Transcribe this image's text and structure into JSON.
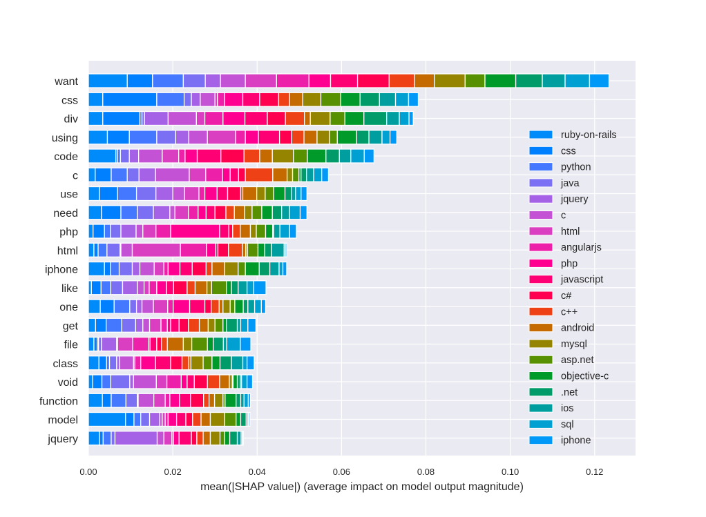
{
  "chart_data": {
    "type": "bar",
    "orientation": "horizontal",
    "stacked": true,
    "title": "",
    "xlabel": "mean(|SHAP value|) (average impact on model output magnitude)",
    "ylabel": "",
    "xlim": [
      0,
      0.1297
    ],
    "xticks": [
      "0.00",
      "0.02",
      "0.04",
      "0.06",
      "0.08",
      "0.10",
      "0.12"
    ],
    "grid": true,
    "legend_position": "right",
    "categories": [
      "want",
      "css",
      "div",
      "using",
      "code",
      "c",
      "use",
      "need",
      "php",
      "html",
      "iphone",
      "like",
      "one",
      "get",
      "file",
      "class",
      "void",
      "function",
      "model",
      "jquery"
    ],
    "series": [
      {
        "name": "ruby-on-rails",
        "color": "#008bfb",
        "values": [
          0.0092,
          0.0034,
          0.0034,
          0.0045,
          0.0065,
          0.0016,
          0.0026,
          0.0031,
          0.0011,
          0.0013,
          0.0038,
          0.0007,
          0.0028,
          0.0017,
          0.0013,
          0.0025,
          0.001,
          0.0033,
          0.0088,
          0.0026
        ]
      },
      {
        "name": "css",
        "color": "#0080ff",
        "values": [
          0.006,
          0.0128,
          0.0088,
          0.0052,
          0.0004,
          0.0038,
          0.0043,
          0.0046,
          0.0027,
          0.001,
          0.0014,
          0.0023,
          0.0033,
          0.0025,
          0.0008,
          0.0018,
          0.0022,
          0.0021,
          0.002,
          0.0009
        ]
      },
      {
        "name": "python",
        "color": "#4479ff",
        "values": [
          0.0073,
          0.0065,
          0.0005,
          0.0065,
          0.0007,
          0.0038,
          0.0045,
          0.0039,
          0.0014,
          0.0021,
          0.0021,
          0.0023,
          0.0037,
          0.0037,
          0.0003,
          0.0007,
          0.0021,
          0.0035,
          0.0016,
          0.0019
        ]
      },
      {
        "name": "java",
        "color": "#7b70f4",
        "values": [
          0.0052,
          0.0017,
          0.0006,
          0.0045,
          0.0021,
          0.0028,
          0.0046,
          0.0038,
          0.0025,
          0.0031,
          0.0031,
          0.0028,
          0.0016,
          0.0033,
          0.0007,
          0.0017,
          0.0045,
          0.0027,
          0.0021,
          0.0009
        ]
      },
      {
        "name": "jquery",
        "color": "#a562e6",
        "values": [
          0.0036,
          0.0021,
          0.0056,
          0.0031,
          0.0022,
          0.0039,
          0.004,
          0.0039,
          0.0036,
          0.0002,
          0.0018,
          0.0035,
          0.0013,
          0.0017,
          0.0036,
          0.0007,
          0.0009,
          0.0002,
          0.0024,
          0.01
        ]
      },
      {
        "name": "c",
        "color": "#c452d4",
        "values": [
          0.0059,
          0.0035,
          0.0067,
          0.0044,
          0.0056,
          0.008,
          0.0028,
          0.0012,
          0.0016,
          0.0027,
          0.0034,
          0.0016,
          0.0027,
          0.0016,
          0.0002,
          0.0033,
          0.0054,
          0.0037,
          0.0006,
          0.0016
        ]
      },
      {
        "name": "html",
        "color": "#d93fc0",
        "values": [
          0.0074,
          0.0006,
          0.002,
          0.0067,
          0.0039,
          0.0039,
          0.0034,
          0.0032,
          0.0031,
          0.0114,
          0.0023,
          0.0012,
          0.0034,
          0.0027,
          0.0036,
          0.0003,
          0.0025,
          0.0027,
          0.0007,
          0.0019
        ]
      },
      {
        "name": "angularjs",
        "color": "#ed21a9",
        "values": [
          0.0077,
          0.0017,
          0.0043,
          0.0023,
          0.0015,
          0.004,
          0.0014,
          0.0023,
          0.0035,
          0.0062,
          0.001,
          0.0018,
          0.0013,
          0.0015,
          0.0037,
          0.0014,
          0.0034,
          0.0011,
          0.0007,
          0.0004
        ]
      },
      {
        "name": "php",
        "color": "#ff0090",
        "values": [
          0.0051,
          0.0043,
          0.0052,
          0.0031,
          0.0029,
          0.0018,
          0.0029,
          0.0019,
          0.0116,
          0.0022,
          0.0028,
          0.0023,
          0.0039,
          0.0008,
          0.0004,
          0.0035,
          0.0014,
          0.0023,
          0.002,
          0.0013
        ]
      },
      {
        "name": "javascript",
        "color": "#ff0074",
        "values": [
          0.0064,
          0.004,
          0.0053,
          0.005,
          0.0056,
          0.002,
          0.0025,
          0.0021,
          0.0022,
          0.0005,
          0.0029,
          0.0017,
          0.0036,
          0.002,
          0.0016,
          0.0036,
          0.0017,
          0.0026,
          0.0022,
          0.0029
        ]
      },
      {
        "name": "c#",
        "color": "#ff0051",
        "values": [
          0.0075,
          0.0045,
          0.0043,
          0.0029,
          0.0055,
          0.0016,
          0.0031,
          0.0026,
          0.0009,
          0.0025,
          0.0033,
          0.0032,
          0.0015,
          0.0022,
          0.0011,
          0.0027,
          0.0031,
          0.0031,
          0.0016,
          0.0013
        ]
      },
      {
        "name": "c++",
        "color": "#ef4116",
        "values": [
          0.006,
          0.0026,
          0.0045,
          0.0029,
          0.0037,
          0.0065,
          0.0005,
          0.002,
          0.0018,
          0.0033,
          0.0014,
          0.0019,
          0.0019,
          0.0026,
          0.0014,
          0.0016,
          0.0029,
          0.0013,
          0.002,
          0.0015
        ]
      },
      {
        "name": "android",
        "color": "#c46a00",
        "values": [
          0.0047,
          0.0031,
          0.0014,
          0.0031,
          0.003,
          0.0034,
          0.0033,
          0.0024,
          0.0024,
          0.0008,
          0.003,
          0.0028,
          0.0009,
          0.0021,
          0.0038,
          0.0005,
          0.0023,
          0.0013,
          0.0022,
          0.0017
        ]
      },
      {
        "name": "mysql",
        "color": "#948400",
        "values": [
          0.0073,
          0.0043,
          0.0047,
          0.003,
          0.005,
          0.0013,
          0.002,
          0.0018,
          0.0014,
          0.0004,
          0.0032,
          0.0011,
          0.0017,
          0.0016,
          0.002,
          0.0029,
          0.0007,
          0.002,
          0.0034,
          0.0023
        ]
      },
      {
        "name": "asp.net",
        "color": "#579000",
        "values": [
          0.0047,
          0.0047,
          0.0035,
          0.0018,
          0.0033,
          0.0015,
          0.002,
          0.0023,
          0.0022,
          0.0025,
          0.0017,
          0.0035,
          0.0011,
          0.0019,
          0.0037,
          0.0021,
          0.0002,
          0.0005,
          0.0027,
          0.0011
        ]
      },
      {
        "name": "objective-c",
        "color": "#009a2a",
        "values": [
          0.0073,
          0.0046,
          0.0045,
          0.0046,
          0.0044,
          0.0005,
          0.0027,
          0.0025,
          0.0017,
          0.0016,
          0.0033,
          0.0012,
          0.002,
          0.0008,
          0.0014,
          0.0019,
          0.001,
          0.0026,
          0.0011,
          0.0012
        ]
      },
      {
        "name": ".net",
        "color": "#009b68",
        "values": [
          0.0063,
          0.0046,
          0.0054,
          0.0029,
          0.0032,
          0.0013,
          0.0015,
          0.0022,
          0.0002,
          0.0016,
          0.0025,
          0.0016,
          0.0011,
          0.0026,
          0.0024,
          0.0027,
          0.0007,
          0.0011,
          0.0013,
          0.0018
        ]
      },
      {
        "name": "ios",
        "color": "#009e9e",
        "values": [
          0.0054,
          0.0038,
          0.003,
          0.0031,
          0.0027,
          0.0017,
          0.001,
          0.0019,
          0.0015,
          0.003,
          0.0022,
          0.0021,
          0.0016,
          0.0008,
          0.0008,
          0.0027,
          0.0003,
          0.0008,
          0.0004,
          0.0009
        ]
      },
      {
        "name": "sql",
        "color": "#00a0d2",
        "values": [
          0.0058,
          0.0031,
          0.0023,
          0.0019,
          0.0032,
          0.0019,
          0.0013,
          0.0025,
          0.0023,
          0.0003,
          0.0009,
          0.0016,
          0.0016,
          0.0017,
          0.0032,
          0.001,
          0.0013,
          0.001,
          0.0002,
          0.0003
        ]
      },
      {
        "name": "iphone",
        "color": "#0099f7",
        "values": [
          0.0046,
          0.0023,
          0.001,
          0.0016,
          0.0023,
          0.0016,
          0.0014,
          0.0016,
          0.0016,
          0.0003,
          0.0009,
          0.0029,
          0.001,
          0.0019,
          0.0025,
          0.0017,
          0.0013,
          0.0005,
          0.0003,
          0.0002
        ]
      }
    ]
  }
}
